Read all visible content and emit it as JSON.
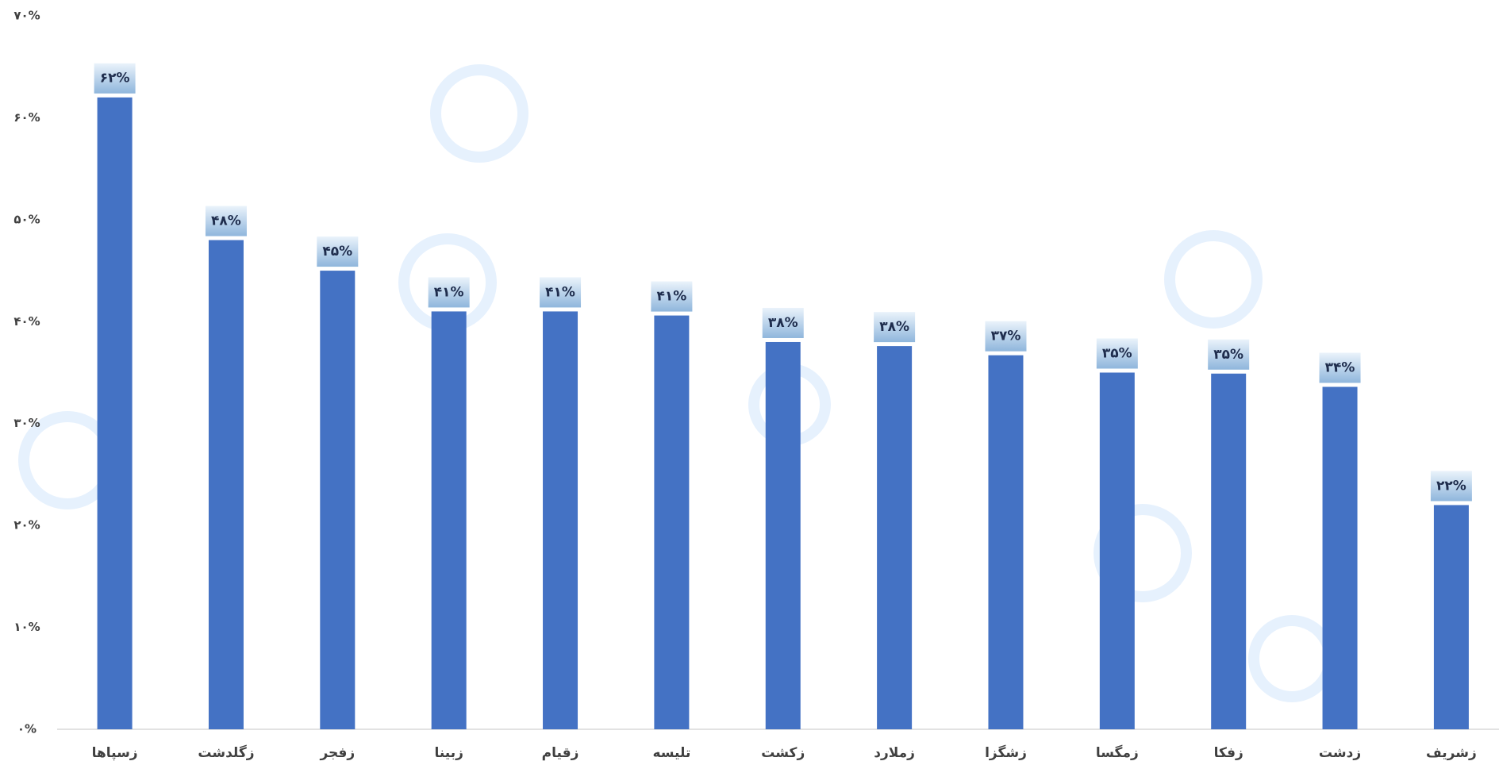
{
  "chart_data": {
    "type": "bar",
    "categories": [
      "زسپاها",
      "زگلدشت",
      "زفجر",
      "زبینا",
      "زقیام",
      "تلیسه",
      "زکشت",
      "زملارد",
      "زشگزا",
      "زمگسا",
      "زفکا",
      "زدشت",
      "زشریف"
    ],
    "values": [
      62,
      48,
      45,
      41,
      41,
      40.6,
      38,
      37.6,
      36.7,
      35,
      34.9,
      33.6,
      22
    ],
    "value_labels": [
      "۶۲%",
      "۴۸%",
      "۴۵%",
      "۴۱%",
      "۴۱%",
      "۴۱%",
      "۳۸%",
      "۳۸%",
      "۳۷%",
      "۳۵%",
      "۳۵%",
      "۳۴%",
      "۲۲%"
    ],
    "color": "#4472c4",
    "ylim": [
      0,
      70
    ],
    "yticks": [
      {
        "value": 0,
        "label": "۰%"
      },
      {
        "value": 10,
        "label": "۱۰%"
      },
      {
        "value": 20,
        "label": "۲۰%"
      },
      {
        "value": 30,
        "label": "۳۰%"
      },
      {
        "value": 40,
        "label": "۴۰%"
      },
      {
        "value": 50,
        "label": "۵۰%"
      },
      {
        "value": 60,
        "label": "۶۰%"
      },
      {
        "value": 70,
        "label": "۷۰%"
      }
    ],
    "grid": false
  }
}
